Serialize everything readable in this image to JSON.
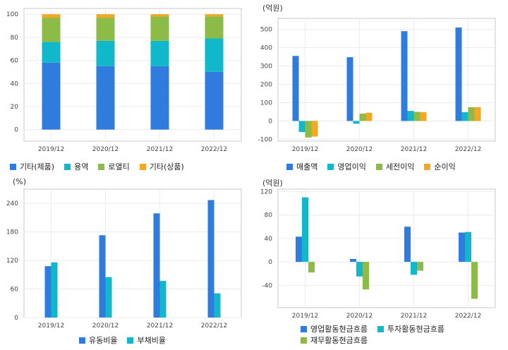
{
  "chart_data": [
    {
      "type": "bar",
      "stacked": true,
      "title": "",
      "unit_label": "",
      "categories": [
        "2019/12",
        "2020/12",
        "2021/12",
        "2022/12"
      ],
      "ylim": [
        -10,
        105
      ],
      "yticks": [
        0,
        20,
        40,
        60,
        80,
        100
      ],
      "grid": true,
      "legend": "bottom",
      "series": [
        {
          "name": "기타(제품)",
          "color": "#2f7bde",
          "values": [
            58,
            55,
            55,
            50
          ]
        },
        {
          "name": "용역",
          "color": "#11b8cc",
          "values": [
            18,
            22,
            22,
            29
          ]
        },
        {
          "name": "로열티",
          "color": "#8dbb48",
          "values": [
            21,
            20,
            21,
            19
          ]
        },
        {
          "name": "기타(상품)",
          "color": "#f5a623",
          "values": [
            3,
            3,
            2,
            2
          ]
        }
      ]
    },
    {
      "type": "bar",
      "title": "",
      "unit_label": "(억원)",
      "categories": [
        "2019/12",
        "2020/12",
        "2021/12",
        "2022/12"
      ],
      "ylim": [
        -110,
        560
      ],
      "yticks": [
        -100,
        0,
        100,
        200,
        300,
        400,
        500
      ],
      "grid": true,
      "legend": "bottom",
      "series": [
        {
          "name": "매출액",
          "color": "#2f7bde",
          "values": [
            355,
            348,
            490,
            510
          ]
        },
        {
          "name": "영업이익",
          "color": "#11b8cc",
          "values": [
            -60,
            -15,
            55,
            48
          ]
        },
        {
          "name": "세전이익",
          "color": "#8dbb48",
          "values": [
            -90,
            40,
            50,
            75
          ]
        },
        {
          "name": "순이익",
          "color": "#f5a623",
          "values": [
            -85,
            45,
            48,
            75
          ]
        }
      ]
    },
    {
      "type": "bar",
      "title": "",
      "unit_label": "(%)",
      "categories": [
        "2019/12",
        "2020/12",
        "2021/12",
        "2022/12"
      ],
      "ylim": [
        0,
        270
      ],
      "yticks": [
        0,
        60,
        120,
        180,
        240
      ],
      "grid": true,
      "legend": "bottom",
      "series": [
        {
          "name": "유동비율",
          "color": "#2f7bde",
          "values": [
            108,
            173,
            219,
            247
          ]
        },
        {
          "name": "부채비율",
          "color": "#11b8cc",
          "values": [
            116,
            85,
            77,
            51
          ]
        }
      ]
    },
    {
      "type": "bar",
      "title": "",
      "unit_label": "(억원)",
      "categories": [
        "2019/12",
        "2020/12",
        "2021/12",
        "2022/12"
      ],
      "ylim": [
        -78,
        124
      ],
      "yticks": [
        -40,
        0,
        40,
        80,
        120
      ],
      "grid": true,
      "legend": "bottom",
      "series": [
        {
          "name": "영업활동현금흐름",
          "color": "#2f7bde",
          "values": [
            43,
            5,
            60,
            50
          ]
        },
        {
          "name": "투자활동현금흐름",
          "color": "#11b8cc",
          "values": [
            110,
            -25,
            -22,
            51
          ]
        },
        {
          "name": "재무활동현금흐름",
          "color": "#8dbb48",
          "values": [
            -18,
            -47,
            -15,
            -63
          ]
        }
      ]
    }
  ]
}
